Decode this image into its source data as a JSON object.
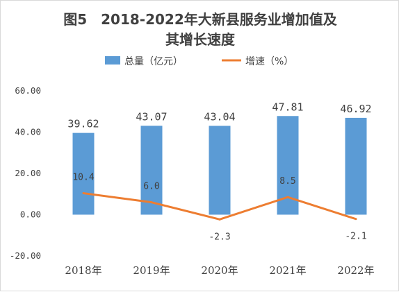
{
  "chart_data": {
    "type": "bar",
    "title_lines": [
      "图5　2018-2022年大新县服务业增加值及",
      "其增长速度"
    ],
    "categories": [
      "2018年",
      "2019年",
      "2020年",
      "2021年",
      "2022年"
    ],
    "series": [
      {
        "name": "总量（亿元）",
        "type": "bar",
        "color": "#5b9bd5",
        "values": [
          39.62,
          43.07,
          43.04,
          47.81,
          46.92
        ],
        "labels": [
          "39.62",
          "43.07",
          "43.04",
          "47.81",
          "46.92"
        ]
      },
      {
        "name": "增速（%）",
        "type": "line",
        "color": "#ed7d31",
        "values": [
          10.4,
          6.0,
          -2.3,
          8.5,
          -2.1
        ],
        "labels": [
          "10.4",
          "6.0",
          "-2.3",
          "8.5",
          "-2.1"
        ]
      }
    ],
    "ylim": [
      -20,
      60
    ],
    "yticks": [
      -20,
      0,
      20,
      40,
      60
    ],
    "ytick_labels": [
      "-20.00",
      "0.00",
      "20.00",
      "40.00",
      "60.00"
    ],
    "grid": false,
    "legend_position": "top-center"
  }
}
